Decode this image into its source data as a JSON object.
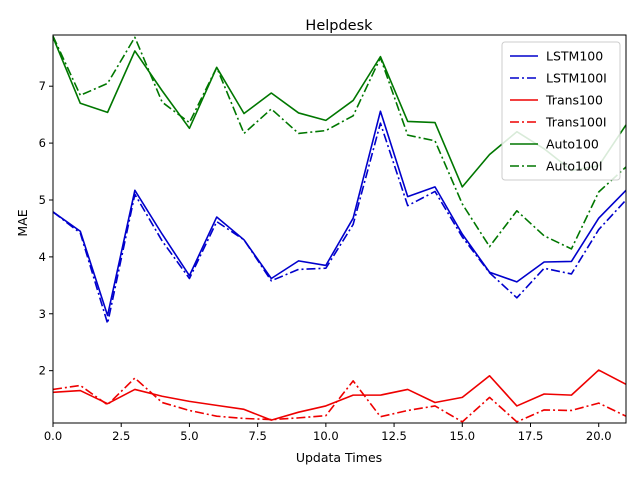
{
  "chart_data": {
    "type": "line",
    "title": "Helpdesk",
    "xlabel": "Updata Times",
    "ylabel": "MAE",
    "xlim": [
      0,
      21
    ],
    "ylim": [
      1.08,
      7.9
    ],
    "xticks": [
      0.0,
      2.5,
      5.0,
      7.5,
      10.0,
      12.5,
      15.0,
      17.5,
      20.0
    ],
    "xtick_labels": [
      "0.0",
      "2.5",
      "5.0",
      "7.5",
      "10.0",
      "12.5",
      "15.0",
      "17.5",
      "20.0"
    ],
    "yticks": [
      2,
      3,
      4,
      5,
      6,
      7
    ],
    "ytick_labels": [
      "2",
      "3",
      "4",
      "5",
      "6",
      "7"
    ],
    "grid": false,
    "legend_position": "top-right",
    "x": [
      0,
      1,
      2,
      3,
      4,
      5,
      6,
      7,
      8,
      9,
      10,
      11,
      12,
      13,
      14,
      15,
      16,
      17,
      18,
      19,
      20,
      21
    ],
    "series": [
      {
        "name": "LSTM100",
        "color": "#0000cc",
        "dash": "solid",
        "values": [
          4.79,
          4.45,
          2.97,
          5.17,
          4.4,
          3.67,
          4.7,
          4.3,
          3.62,
          3.93,
          3.85,
          4.68,
          6.56,
          5.06,
          5.23,
          4.4,
          3.73,
          3.56,
          3.91,
          3.92,
          4.68,
          5.17
        ]
      },
      {
        "name": "LSTM100I",
        "color": "#0000cc",
        "dash": "dashdot",
        "values": [
          4.79,
          4.42,
          2.83,
          5.1,
          4.28,
          3.62,
          4.62,
          4.3,
          3.58,
          3.78,
          3.8,
          4.57,
          6.35,
          4.9,
          5.15,
          4.35,
          3.72,
          3.28,
          3.8,
          3.7,
          4.48,
          5.0
        ]
      },
      {
        "name": "Trans100",
        "color": "#ee0000",
        "dash": "solid",
        "values": [
          1.62,
          1.65,
          1.42,
          1.67,
          1.55,
          1.46,
          1.39,
          1.32,
          1.13,
          1.27,
          1.38,
          1.57,
          1.57,
          1.67,
          1.44,
          1.53,
          1.91,
          1.38,
          1.59,
          1.57,
          2.01,
          1.76
        ]
      },
      {
        "name": "Trans100I",
        "color": "#ee0000",
        "dash": "dashdot",
        "values": [
          1.67,
          1.74,
          1.4,
          1.87,
          1.44,
          1.3,
          1.2,
          1.16,
          1.14,
          1.17,
          1.21,
          1.82,
          1.19,
          1.3,
          1.38,
          1.1,
          1.53,
          1.1,
          1.31,
          1.3,
          1.43,
          1.2
        ]
      },
      {
        "name": "Auto100",
        "color": "#007700",
        "dash": "solid",
        "values": [
          7.86,
          6.7,
          6.54,
          7.62,
          6.92,
          6.26,
          7.33,
          6.52,
          6.88,
          6.53,
          6.4,
          6.75,
          7.52,
          6.38,
          6.36,
          5.23,
          5.8,
          6.2,
          5.9,
          5.52,
          5.6,
          6.32
        ]
      },
      {
        "name": "Auto100I",
        "color": "#007700",
        "dash": "dashdot",
        "values": [
          7.88,
          6.84,
          7.05,
          7.86,
          6.72,
          6.36,
          7.33,
          6.17,
          6.6,
          6.17,
          6.22,
          6.48,
          7.5,
          6.14,
          6.04,
          4.93,
          4.18,
          4.81,
          4.37,
          4.14,
          5.14,
          5.58
        ]
      }
    ]
  }
}
